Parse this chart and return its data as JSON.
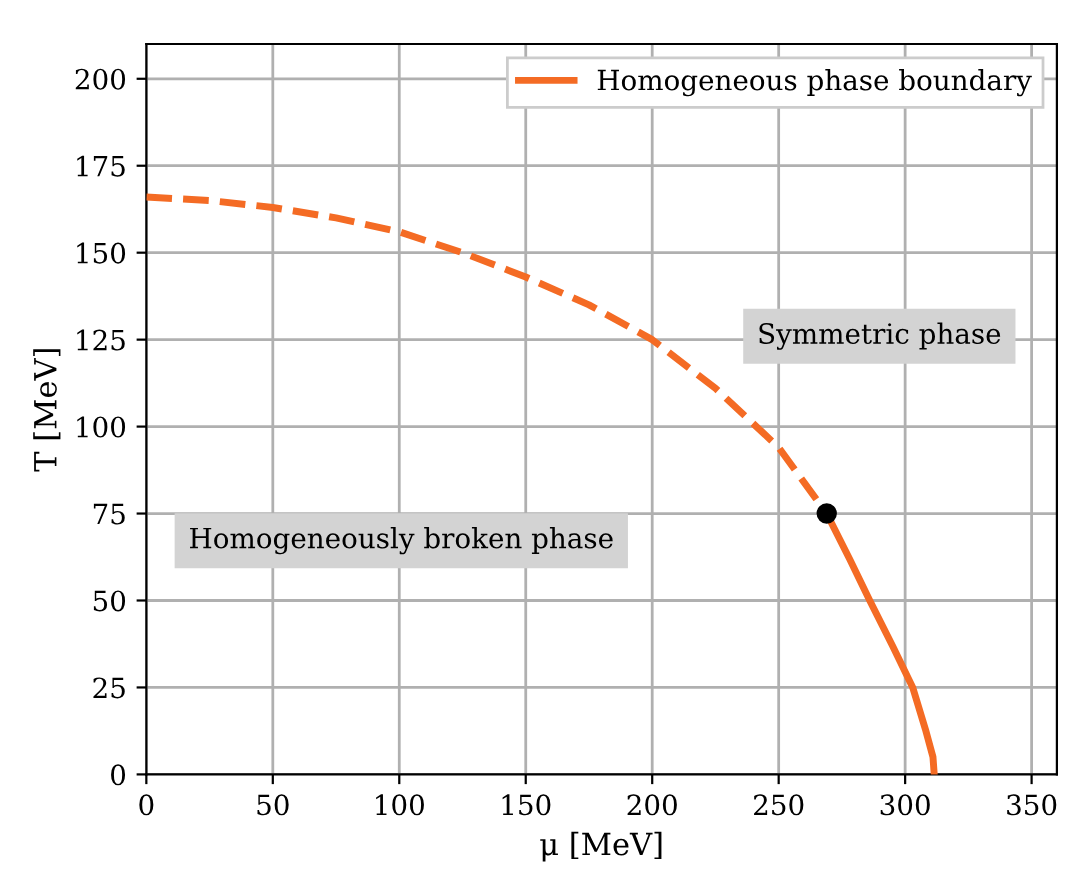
{
  "chart_data": {
    "type": "line",
    "xlabel": "μ [MeV]",
    "ylabel": "T [MeV]",
    "xlim": [
      0,
      360
    ],
    "xticks": [
      0,
      50,
      100,
      150,
      200,
      250,
      300,
      350
    ],
    "ylim": [
      0,
      210
    ],
    "yticks": [
      0,
      25,
      50,
      75,
      100,
      125,
      150,
      175,
      200
    ],
    "grid": true,
    "legend": "top right",
    "series": [
      {
        "name": "Homogeneous phase boundary",
        "color": "#f46b24",
        "line_style": "solid",
        "x": [
          269,
          278,
          286,
          295,
          303,
          308,
          311,
          311.5
        ],
        "values": [
          75,
          62,
          50,
          37,
          25,
          13,
          5,
          0
        ]
      },
      {
        "color": "#f46b24",
        "line_style": "dashed",
        "x": [
          0,
          25,
          50,
          75,
          100,
          125,
          150,
          175,
          200,
          225,
          250,
          269
        ],
        "values": [
          166,
          165,
          163,
          160,
          156,
          150,
          143,
          135,
          125,
          111,
          94,
          75
        ]
      },
      {
        "type": "scatter",
        "color": "#000000",
        "x": [
          269
        ],
        "values": [
          75
        ]
      }
    ],
    "annotations": [
      "Symmetric phase",
      "Homogeneously broken phase"
    ]
  }
}
